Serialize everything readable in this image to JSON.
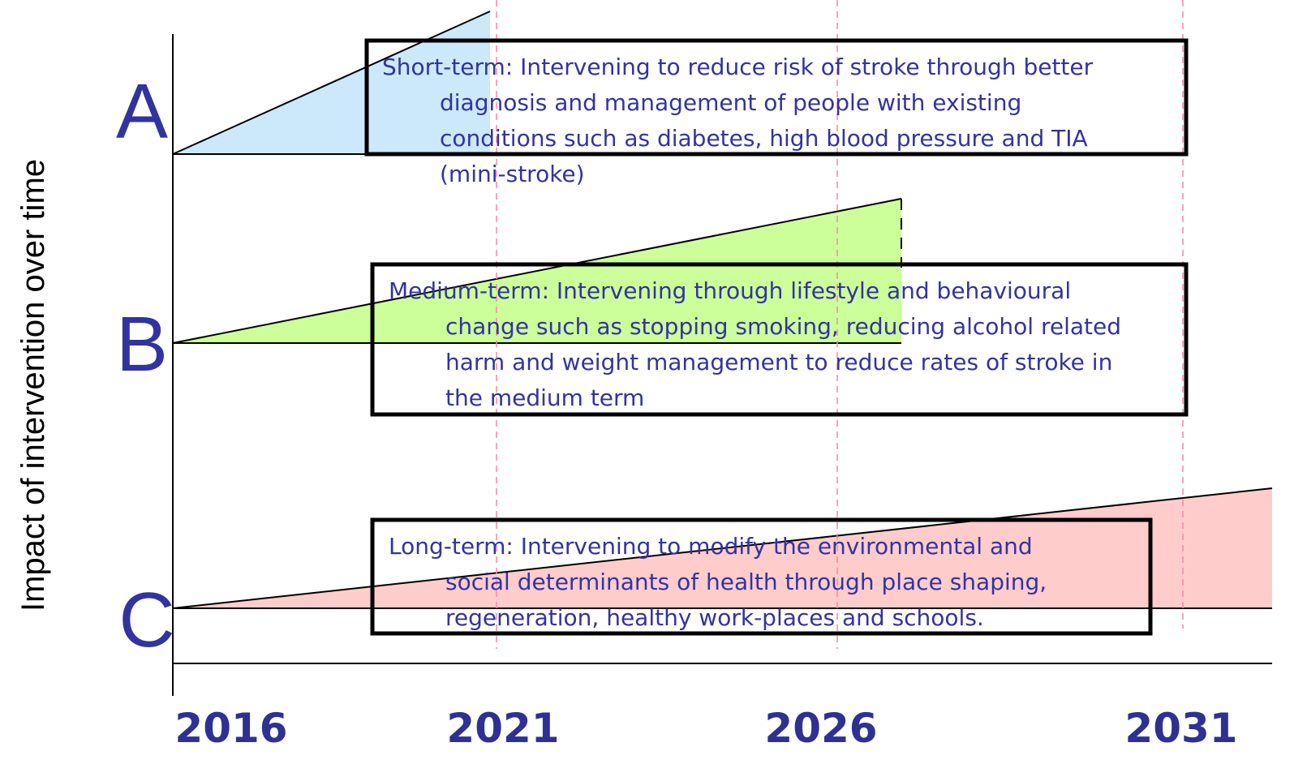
{
  "y_axis_label": "Impact of intervention over time",
  "rows": [
    {
      "letter": "A",
      "lines": [
        "Short-term: Intervening to reduce risk of stroke through better",
        "diagnosis and management of people with existing",
        "conditions such as diabetes, high blood pressure and TIA",
        "(mini-stroke)"
      ]
    },
    {
      "letter": "B",
      "lines": [
        "Medium-term: Intervening through lifestyle and behavioural",
        "change such as stopping smoking, reducing alcohol related",
        "harm and weight management to reduce rates of stroke in",
        "the medium term"
      ]
    },
    {
      "letter": "C",
      "lines": [
        "Long-term: Intervening to modify the environmental and",
        "social determinants of health through place shaping,",
        "regeneration, healthy work-places and schools."
      ]
    }
  ],
  "years": [
    "2016",
    "2021",
    "2026",
    "2031"
  ]
}
